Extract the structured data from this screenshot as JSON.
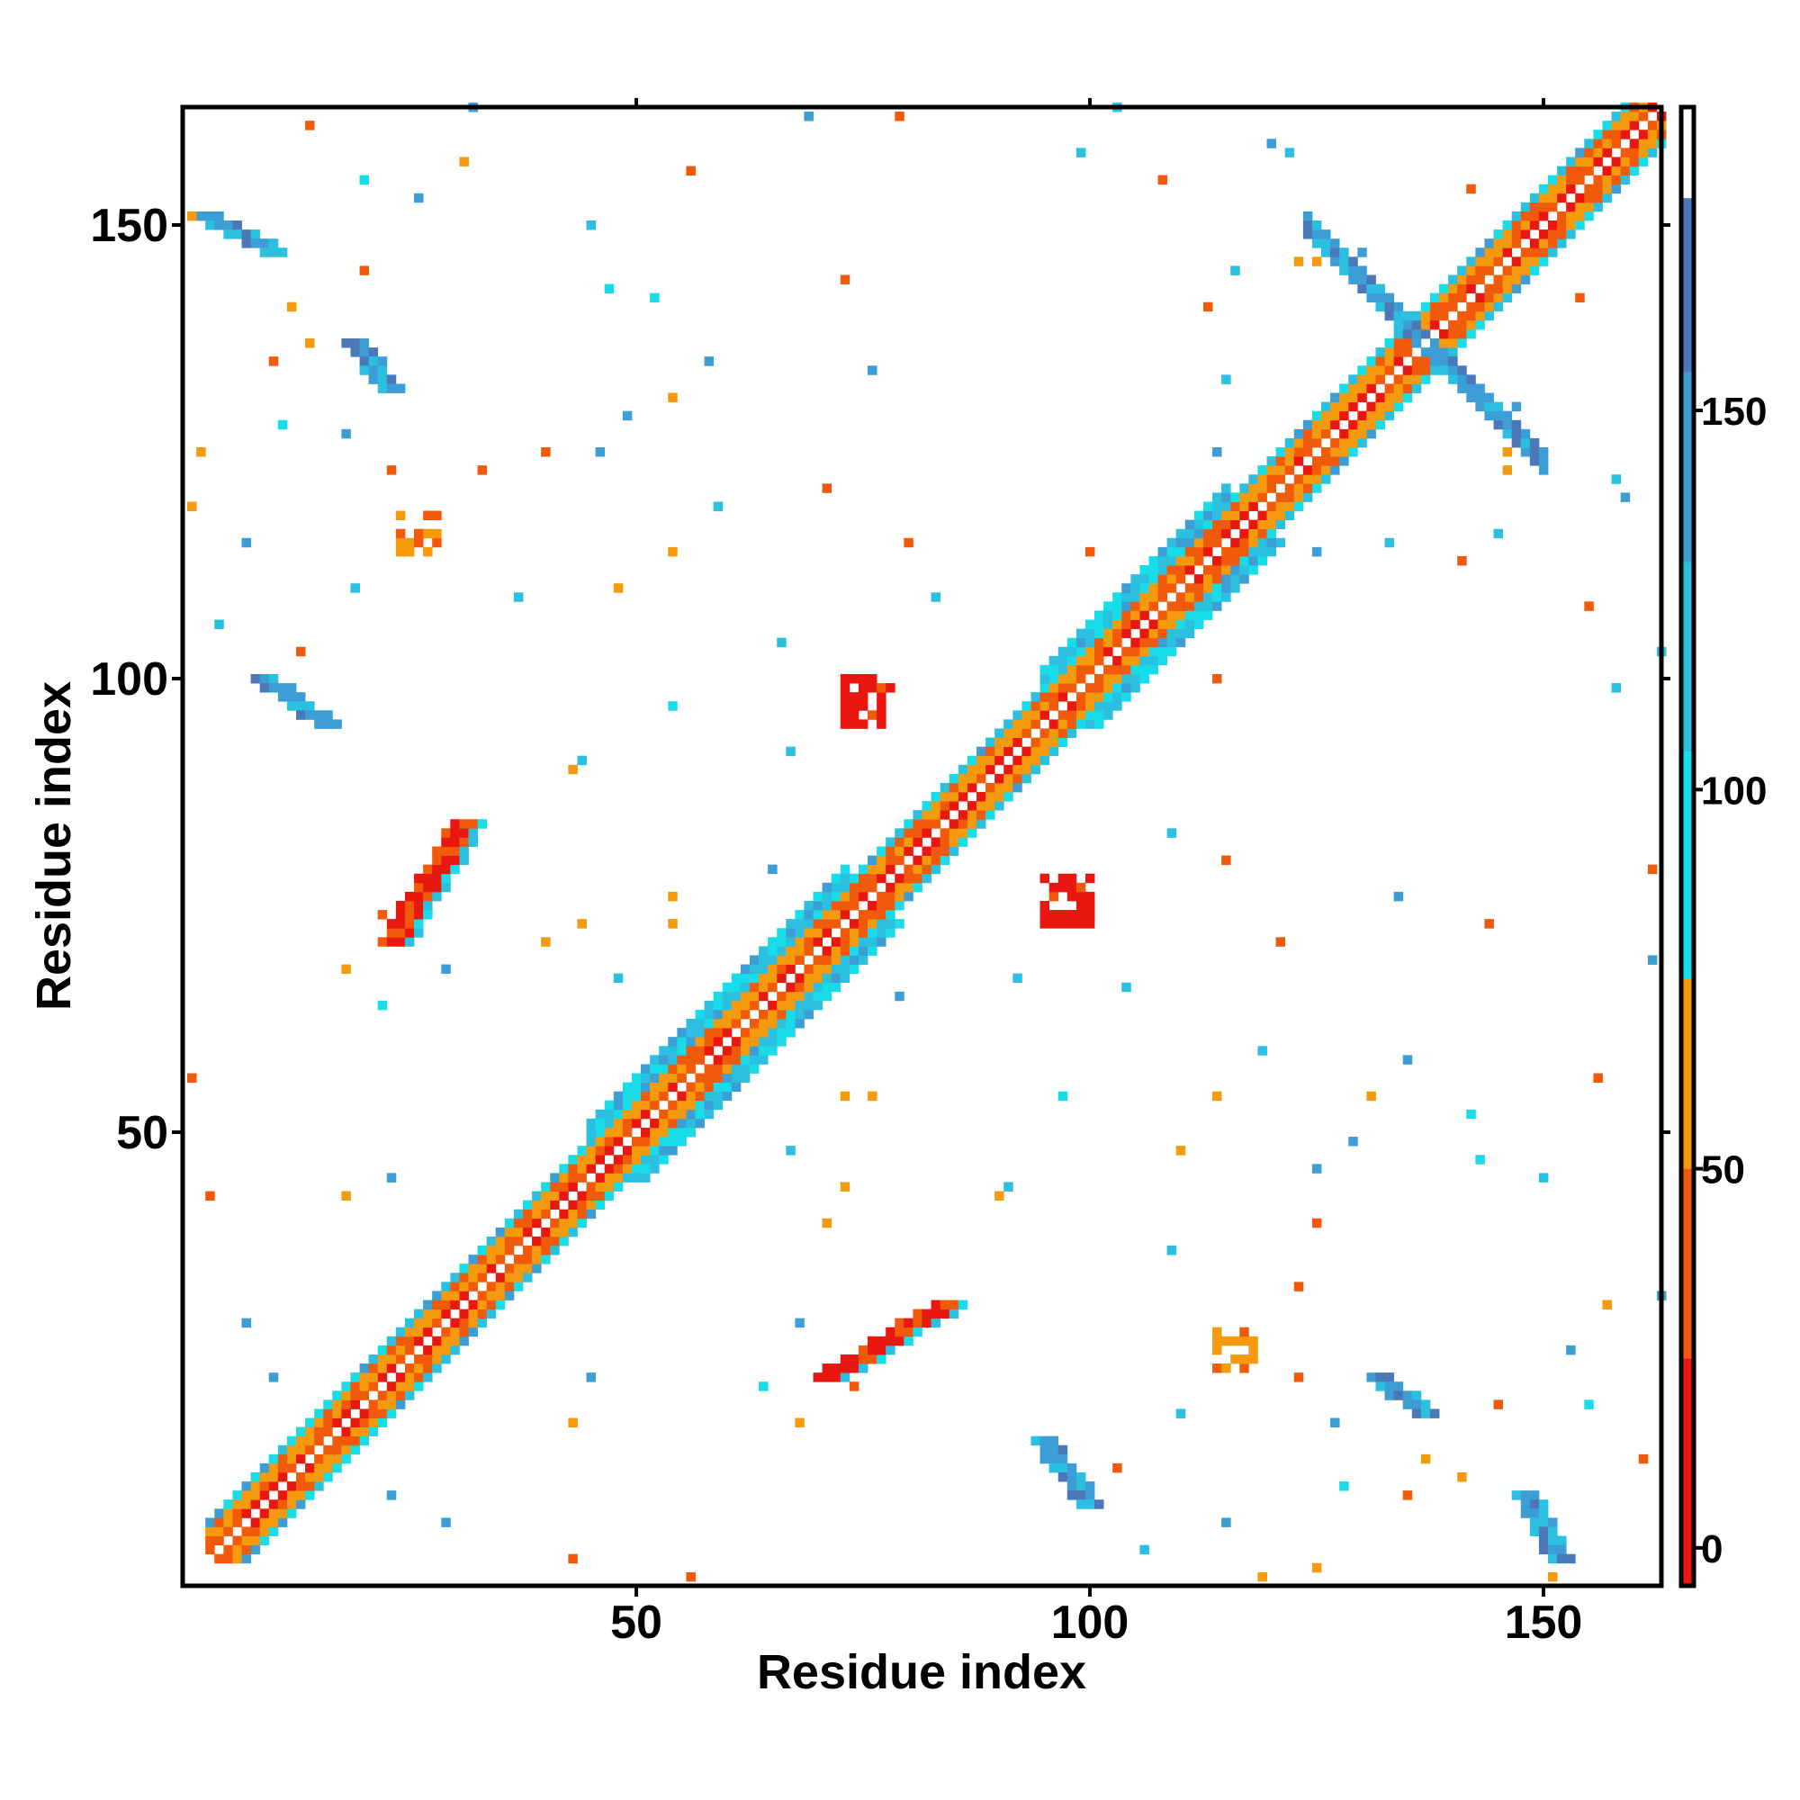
{
  "chart_data": {
    "type": "heatmap",
    "title": "",
    "xlabel": "Residue index",
    "ylabel": "Residue index",
    "xlim": [
      1,
      163
    ],
    "ylim": [
      1,
      163
    ],
    "x_ticks": [
      50,
      100,
      150
    ],
    "y_ticks": [
      50,
      100,
      150
    ],
    "x_tick_labels": [
      "50",
      "100",
      "150"
    ],
    "y_tick_labels": [
      "50",
      "100",
      "150"
    ],
    "colorbar": {
      "range": [
        -5,
        190
      ],
      "ticks": [
        0,
        50,
        100,
        150
      ],
      "tick_labels": [
        "0",
        "50",
        "100",
        "150"
      ],
      "bands": [
        {
          "from": -5,
          "to": 25,
          "color": "#e8170f"
        },
        {
          "from": 25,
          "to": 50,
          "color": "#f05a0a"
        },
        {
          "from": 50,
          "to": 75,
          "color": "#f59a0c"
        },
        {
          "from": 75,
          "to": 105,
          "color": "#18dce8"
        },
        {
          "from": 105,
          "to": 130,
          "color": "#2cc0e0"
        },
        {
          "from": 130,
          "to": 155,
          "color": "#3c9ed4"
        },
        {
          "from": 155,
          "to": 178,
          "color": "#4a78b8"
        },
        {
          "from": 178,
          "to": 190,
          "color": "#ffffff"
        }
      ]
    },
    "grid": false,
    "legend": "colorbar-right",
    "diagonal": {
      "from": 1,
      "to": 163
    },
    "regions": [
      {
        "x": [
          3,
          48
        ],
        "y": [
          3,
          48
        ],
        "value": 20,
        "kind": "helix_band"
      },
      {
        "x": [
          45,
          73
        ],
        "y": [
          45,
          73
        ],
        "value": 60,
        "kind": "helix_band_wide"
      },
      {
        "x": [
          73,
          95
        ],
        "y": [
          73,
          95
        ],
        "value": 30,
        "kind": "helix_band"
      },
      {
        "x": [
          95,
          115
        ],
        "y": [
          95,
          115
        ],
        "value": 45,
        "kind": "helix_band_wide"
      },
      {
        "x": [
          115,
          163
        ],
        "y": [
          115,
          163
        ],
        "value": 25,
        "kind": "helix_band"
      },
      {
        "x": [
          123,
          150
        ],
        "y": [
          123,
          150
        ],
        "value": 160,
        "kind": "antidiagonal"
      },
      {
        "x": [
          3,
          10
        ],
        "y": [
          147,
          151
        ],
        "value": 160,
        "kind": "antiparallel_off"
      },
      {
        "x": [
          148,
          152
        ],
        "y": [
          3,
          10
        ],
        "value": 160,
        "kind": "antiparallel_off"
      },
      {
        "x": [
          19,
          23
        ],
        "y": [
          132,
          137
        ],
        "value": 160,
        "kind": "antiparallel_off"
      },
      {
        "x": [
          132,
          137
        ],
        "y": [
          19,
          23
        ],
        "value": 160,
        "kind": "antiparallel_off"
      },
      {
        "x": [
          9,
          16
        ],
        "y": [
          95,
          100
        ],
        "value": 150,
        "kind": "antiparallel_off"
      },
      {
        "x": [
          95,
          100
        ],
        "y": [
          9,
          16
        ],
        "value": 150,
        "kind": "antiparallel_off"
      },
      {
        "x": [
          23,
          31
        ],
        "y": [
          71,
          84
        ],
        "value": 10,
        "kind": "parallel_off"
      },
      {
        "x": [
          71,
          84
        ],
        "y": [
          23,
          31
        ],
        "value": 10,
        "kind": "parallel_off"
      },
      {
        "x": [
          73,
          78
        ],
        "y": [
          95,
          100
        ],
        "value": 10,
        "kind": "block"
      },
      {
        "x": [
          95,
          100
        ],
        "y": [
          73,
          78
        ],
        "value": 10,
        "kind": "block"
      },
      {
        "x": [
          24,
          28
        ],
        "y": [
          114,
          118
        ],
        "value": 55,
        "kind": "block"
      },
      {
        "x": [
          114,
          118
        ],
        "y": [
          24,
          28
        ],
        "value": 55,
        "kind": "block"
      }
    ]
  }
}
